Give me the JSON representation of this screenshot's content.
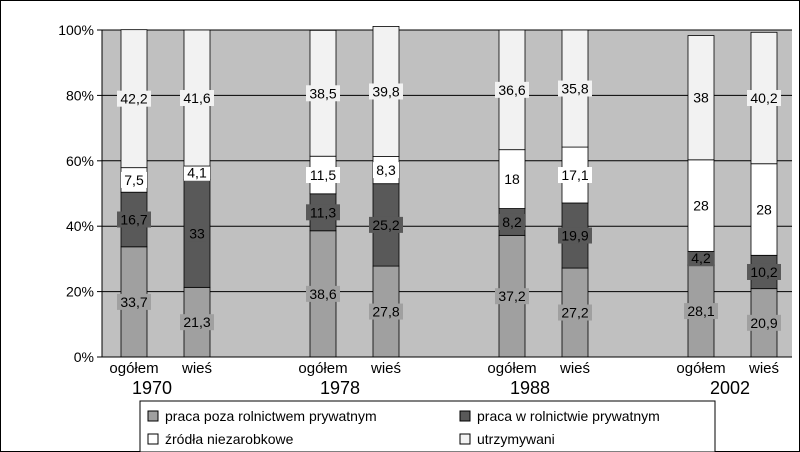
{
  "chart_data": {
    "type": "bar",
    "stacked": true,
    "percent_stacked": true,
    "ylim": [
      0,
      100
    ],
    "y_ticks": [
      "0%",
      "20%",
      "40%",
      "60%",
      "80%",
      "100%"
    ],
    "grid": true,
    "legend_position": "bottom",
    "groups": [
      {
        "year": "1970",
        "bars": [
          {
            "label": "ogółem",
            "values": [
              33.7,
              16.7,
              7.5,
              42.2
            ]
          },
          {
            "label": "wieś",
            "values": [
              21.3,
              33,
              4.1,
              41.6
            ]
          }
        ]
      },
      {
        "year": "1978",
        "bars": [
          {
            "label": "ogółem",
            "values": [
              38.6,
              11.3,
              11.5,
              38.5
            ]
          },
          {
            "label": "wieś",
            "values": [
              27.8,
              25.2,
              8.3,
              39.8
            ]
          }
        ]
      },
      {
        "year": "1988",
        "bars": [
          {
            "label": "ogółem",
            "values": [
              37.2,
              8.2,
              18,
              36.6
            ]
          },
          {
            "label": "wieś",
            "values": [
              27.2,
              19.9,
              17.1,
              35.8
            ]
          }
        ]
      },
      {
        "year": "2002",
        "bars": [
          {
            "label": "ogółem",
            "values": [
              28.1,
              4.2,
              28,
              38
            ]
          },
          {
            "label": "wieś",
            "values": [
              20.9,
              10.2,
              28,
              40.2
            ]
          }
        ]
      }
    ],
    "series": [
      {
        "name": "praca poza rolnictwem prywatnym",
        "color": "#a0a0a0"
      },
      {
        "name": "praca w rolnictwie prywatnym",
        "color": "#595959"
      },
      {
        "name": "źródła niezarobkowe",
        "color": "#ffffff"
      },
      {
        "name": "utrzymywani",
        "color": "#f2f2f2"
      }
    ],
    "plot_background": "#c0c0c0"
  }
}
